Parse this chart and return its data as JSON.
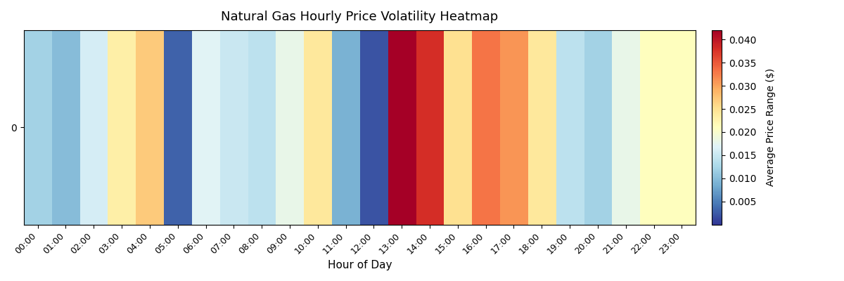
{
  "title": "Natural Gas Hourly Price Volatility Heatmap",
  "xlabel": "Hour of Day",
  "ylabel": "Average Price Range ($)",
  "hours": [
    "00:00",
    "01:00",
    "02:00",
    "03:00",
    "04:00",
    "05:00",
    "06:00",
    "07:00",
    "08:00",
    "09:00",
    "10:00",
    "11:00",
    "12:00",
    "13:00",
    "14:00",
    "15:00",
    "16:00",
    "17:00",
    "18:00",
    "19:00",
    "20:00",
    "21:00",
    "22:00",
    "23:00"
  ],
  "values": [
    0.012,
    0.01,
    0.016,
    0.023,
    0.027,
    0.003,
    0.017,
    0.015,
    0.014,
    0.018,
    0.024,
    0.009,
    0.002,
    0.042,
    0.038,
    0.025,
    0.033,
    0.031,
    0.024,
    0.014,
    0.012,
    0.018,
    0.021,
    0.021
  ],
  "vmin": 0.0,
  "vmax": 0.042,
  "cmap": "RdYlBu_r",
  "colorbar_ticks": [
    0.005,
    0.01,
    0.015,
    0.02,
    0.025,
    0.03,
    0.035,
    0.04
  ],
  "colorbar_tick_labels": [
    "0.005",
    "0.010",
    "0.015",
    "0.020",
    "0.025",
    "0.030",
    "0.035",
    "0.040"
  ],
  "figsize": [
    12.0,
    4.0
  ],
  "dpi": 100,
  "title_fontsize": 13,
  "xlabel_fontsize": 11,
  "tick_fontsize": 9,
  "cbar_label_fontsize": 10,
  "ytick_label": "0"
}
